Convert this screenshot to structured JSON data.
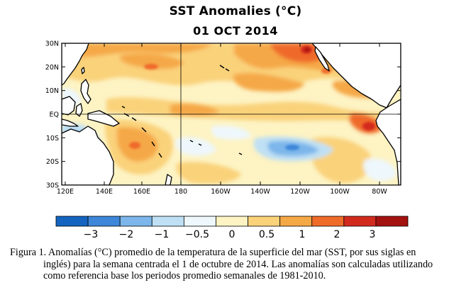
{
  "header": {
    "title": "SST Anomalies (°C)",
    "date": "01 OCT 2014"
  },
  "map": {
    "lat_labels": [
      "30N",
      "20N",
      "10N",
      "EQ",
      "10S",
      "20S",
      "30S"
    ],
    "lon_labels": [
      "120E",
      "140E",
      "160E",
      "180",
      "160W",
      "140W",
      "120W",
      "100W",
      "80W"
    ]
  },
  "colorbar": {
    "colors": [
      "#1565c0",
      "#3d86d9",
      "#7cb6ea",
      "#bfe0f4",
      "#eef7fb",
      "#fdf3c3",
      "#fad27a",
      "#f5a846",
      "#ef6b2a",
      "#d32a1e",
      "#a3120f"
    ],
    "labels": [
      "−3",
      "−2",
      "−1",
      "−0.5",
      "0",
      "0.5",
      "1",
      "2",
      "3"
    ]
  },
  "caption": {
    "line1": "Figura 1. Anomalías (°C) promedio de la temperatura de la superficie del mar (SST, por sus siglas en",
    "line2": "inglés) para la semana centrada el 1 de octubre de 2014.   Las anomalías son calculadas utilizando",
    "line3": "como referencia base los periodos promedio semanales de 1981-2010."
  }
}
